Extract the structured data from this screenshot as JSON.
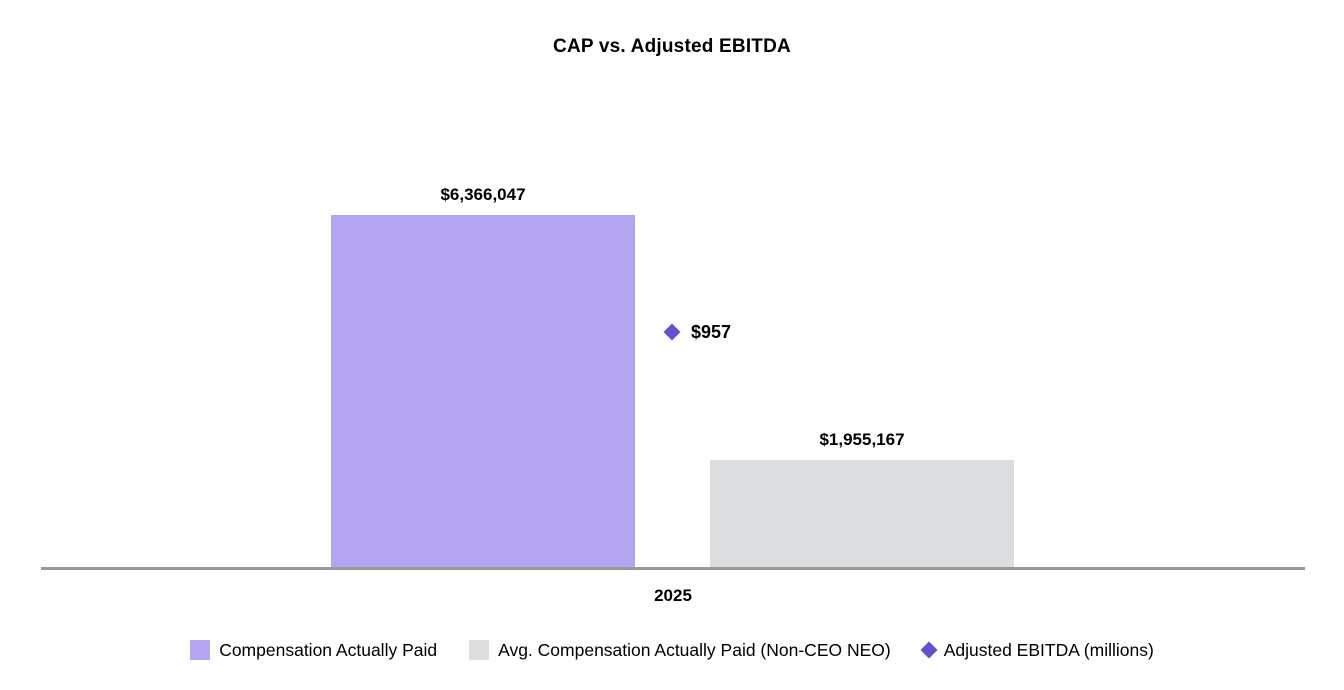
{
  "chart_data": {
    "type": "bar",
    "title": "CAP vs. Adjusted EBITDA",
    "categories": [
      "2025"
    ],
    "series": [
      {
        "name": "Compensation Actually Paid",
        "kind": "bar",
        "values": [
          6366047
        ],
        "label": "$6,366,047",
        "color": "#b3a5f0"
      },
      {
        "name": "Avg. Compensation Actually Paid (Non-CEO NEO)",
        "kind": "bar",
        "values": [
          1955167
        ],
        "label": "$1,955,167",
        "color": "#dcdddf"
      },
      {
        "name": "Adjusted EBITDA (millions)",
        "kind": "point",
        "marker": "diamond",
        "values": [
          957
        ],
        "label": "$957",
        "color": "#6450cb"
      }
    ],
    "xlabel": "",
    "ylabel": "",
    "grid": false,
    "legend_position": "bottom",
    "axis_line_color": "#9a9a9a",
    "background": "#ffffff",
    "value_label_color": "#000000"
  }
}
